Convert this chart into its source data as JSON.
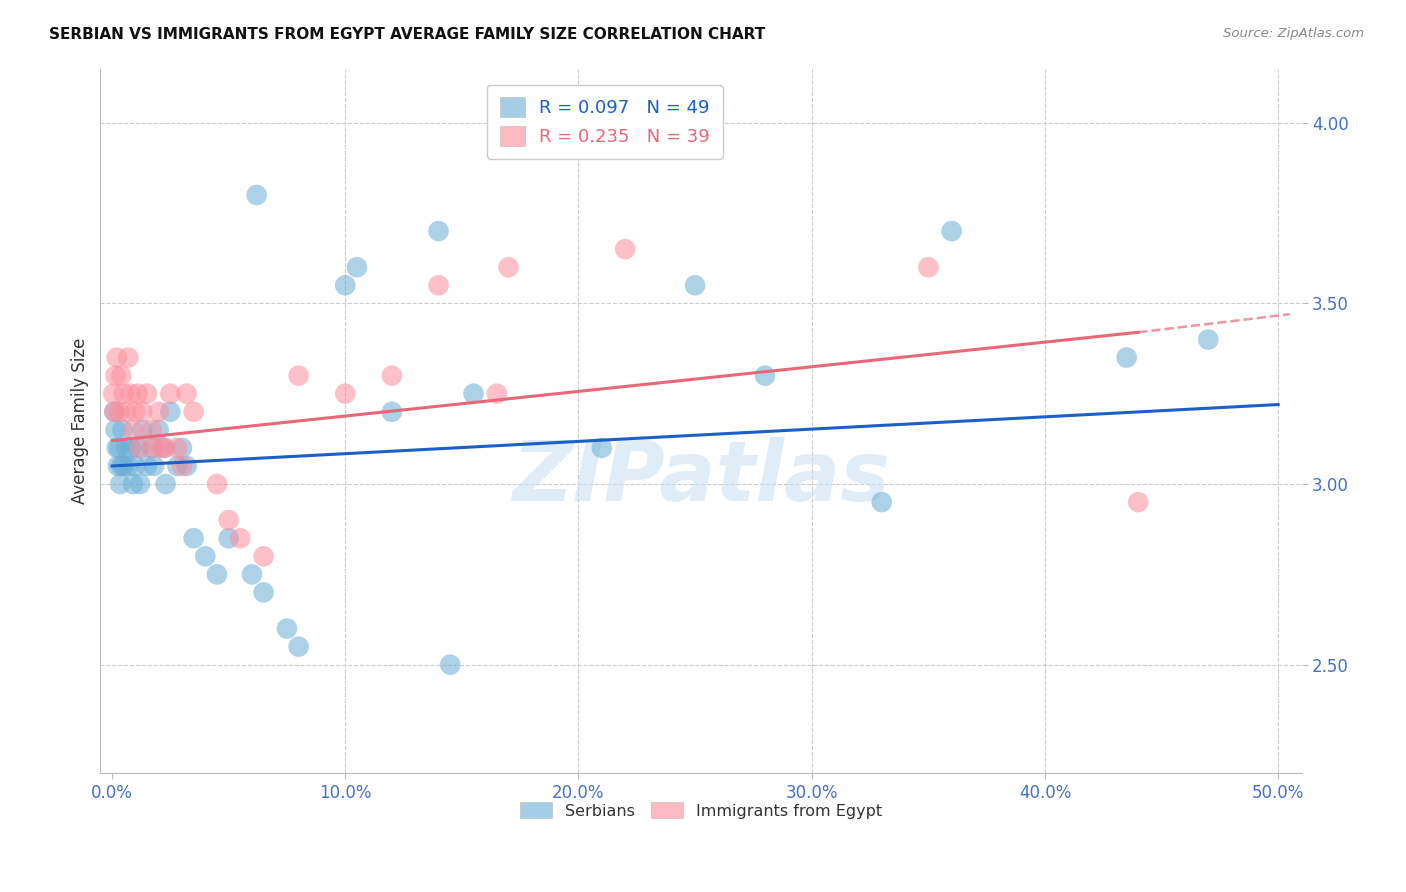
{
  "title": "SERBIAN VS IMMIGRANTS FROM EGYPT AVERAGE FAMILY SIZE CORRELATION CHART",
  "source": "Source: ZipAtlas.com",
  "ylabel": "Average Family Size",
  "xlabel_ticks": [
    "0.0%",
    "10.0%",
    "20.0%",
    "30.0%",
    "40.0%",
    "50.0%"
  ],
  "xlabel_vals": [
    0,
    10,
    20,
    30,
    40,
    50
  ],
  "ytick_vals": [
    2.5,
    3.0,
    3.5,
    4.0
  ],
  "ylim": [
    2.2,
    4.15
  ],
  "xlim": [
    -0.5,
    51
  ],
  "serbian_color": "#6baed6",
  "egypt_color": "#fc8d9c",
  "trendline_serbian_color": "#1a60c8",
  "trendline_egypt_color": "#e8687a",
  "watermark": "ZIPatlas",
  "background_color": "#ffffff",
  "grid_color": "#cccccc",
  "tick_color": "#4472c4",
  "serbian_x": [
    0.1,
    0.15,
    0.2,
    0.25,
    0.3,
    0.35,
    0.4,
    0.5,
    0.6,
    0.7,
    0.8,
    0.9,
    1.0,
    1.1,
    1.2,
    1.3,
    1.5,
    1.7,
    2.0,
    2.2,
    2.5,
    2.8,
    3.0,
    3.5,
    4.0,
    5.0,
    6.0,
    6.5,
    7.5,
    8.0,
    10.0,
    10.5,
    12.0,
    14.0,
    15.5,
    21.0,
    25.0,
    28.0,
    33.0,
    36.0,
    43.5,
    47.0,
    14.5,
    2.3,
    1.8,
    4.5,
    3.2,
    0.45,
    6.2
  ],
  "serbian_y": [
    3.2,
    3.15,
    3.1,
    3.05,
    3.1,
    3.0,
    3.05,
    3.05,
    3.1,
    3.05,
    3.1,
    3.0,
    3.05,
    3.1,
    3.0,
    3.15,
    3.05,
    3.1,
    3.15,
    3.1,
    3.2,
    3.05,
    3.1,
    2.85,
    2.8,
    2.85,
    2.75,
    2.7,
    2.6,
    2.55,
    3.55,
    3.6,
    3.2,
    3.7,
    3.25,
    3.1,
    3.55,
    3.3,
    2.95,
    3.7,
    3.35,
    3.4,
    2.5,
    3.0,
    3.05,
    2.75,
    3.05,
    3.15,
    3.8
  ],
  "egypt_x": [
    0.05,
    0.1,
    0.15,
    0.2,
    0.3,
    0.4,
    0.5,
    0.6,
    0.7,
    0.8,
    0.9,
    1.0,
    1.1,
    1.2,
    1.3,
    1.5,
    1.7,
    2.0,
    2.3,
    2.5,
    2.8,
    3.0,
    3.5,
    4.5,
    5.0,
    5.5,
    6.5,
    8.0,
    10.0,
    12.0,
    14.0,
    16.5,
    17.0,
    22.0,
    35.0,
    44.0,
    2.1,
    1.8,
    3.2
  ],
  "egypt_y": [
    3.25,
    3.2,
    3.3,
    3.35,
    3.2,
    3.3,
    3.25,
    3.2,
    3.35,
    3.25,
    3.15,
    3.2,
    3.25,
    3.1,
    3.2,
    3.25,
    3.15,
    3.2,
    3.1,
    3.25,
    3.1,
    3.05,
    3.2,
    3.0,
    2.9,
    2.85,
    2.8,
    3.3,
    3.25,
    3.3,
    3.55,
    3.25,
    3.6,
    3.65,
    3.6,
    2.95,
    3.1,
    3.1,
    3.25
  ],
  "trendline_s_x0": 0.0,
  "trendline_s_y0": 3.05,
  "trendline_s_x1": 50.0,
  "trendline_s_y1": 3.22,
  "trendline_e_x0": 0.0,
  "trendline_e_y0": 3.12,
  "trendline_e_x1": 44.0,
  "trendline_e_y1": 3.42,
  "trendline_e_dash_x0": 44.0,
  "trendline_e_dash_y0": 3.42,
  "trendline_e_dash_x1": 50.5,
  "trendline_e_dash_y1": 3.47
}
